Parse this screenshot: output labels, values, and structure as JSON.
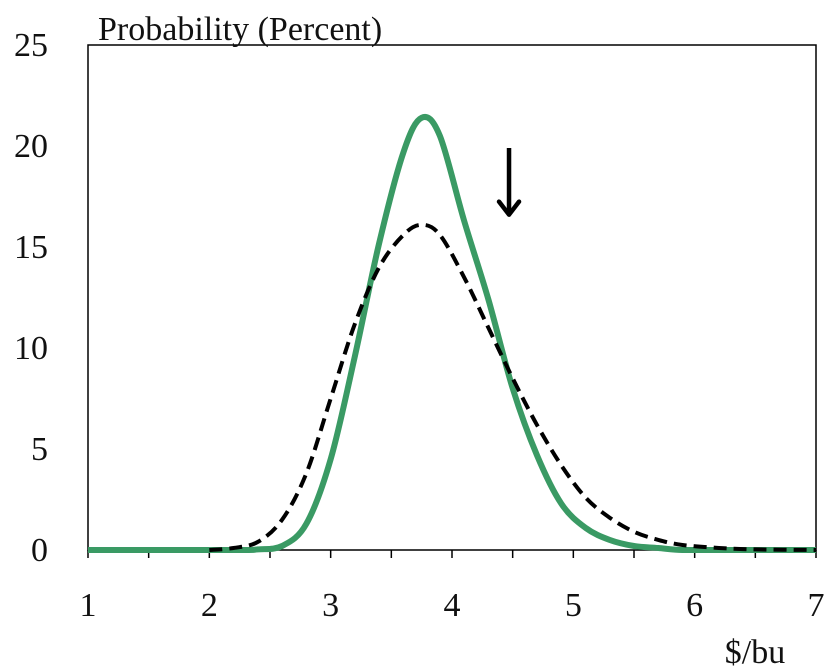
{
  "chart_data": {
    "type": "line",
    "ylabel": "Probability (Percent)",
    "xlabel": "$/bu",
    "xlim": [
      1,
      7
    ],
    "ylim": [
      0,
      25
    ],
    "x_ticks": [
      "1",
      "2",
      "3",
      "4",
      "5",
      "6",
      "7"
    ],
    "y_ticks": [
      "0",
      "5",
      "10",
      "15",
      "20",
      "25"
    ],
    "grid": false,
    "legend": "none",
    "series": [
      {
        "style": "solid",
        "color": "#3a9a64",
        "x": [
          1.0,
          2.2,
          2.4,
          2.6,
          2.8,
          3.0,
          3.2,
          3.4,
          3.6,
          3.75,
          3.9,
          4.1,
          4.3,
          4.5,
          4.7,
          4.9,
          5.1,
          5.3,
          5.5,
          5.7,
          5.9,
          6.2,
          7.0
        ],
        "y": [
          0,
          0,
          0.03,
          0.2,
          1.3,
          4.5,
          9.6,
          15.2,
          19.7,
          21.4,
          20.5,
          16.3,
          12.4,
          8.0,
          4.7,
          2.3,
          1.1,
          0.5,
          0.2,
          0.1,
          0.0,
          0,
          0
        ]
      },
      {
        "style": "dashed",
        "color": "#000000",
        "x": [
          2.0,
          2.2,
          2.4,
          2.6,
          2.8,
          3.0,
          3.2,
          3.4,
          3.6,
          3.75,
          3.9,
          4.1,
          4.3,
          4.5,
          4.7,
          4.9,
          5.1,
          5.3,
          5.5,
          5.7,
          5.9,
          6.2,
          6.5,
          7.0
        ],
        "y": [
          0.0,
          0.1,
          0.4,
          1.5,
          3.8,
          7.5,
          11.2,
          14.0,
          15.6,
          16.1,
          15.6,
          13.5,
          11.0,
          8.5,
          6.2,
          4.2,
          2.6,
          1.6,
          0.9,
          0.5,
          0.25,
          0.1,
          0.03,
          0
        ]
      }
    ],
    "annotations": [
      {
        "type": "arrow",
        "direction": "down",
        "x": 4.47,
        "y_from": 19.9,
        "y_to": 16.6,
        "color": "#000000"
      }
    ]
  }
}
